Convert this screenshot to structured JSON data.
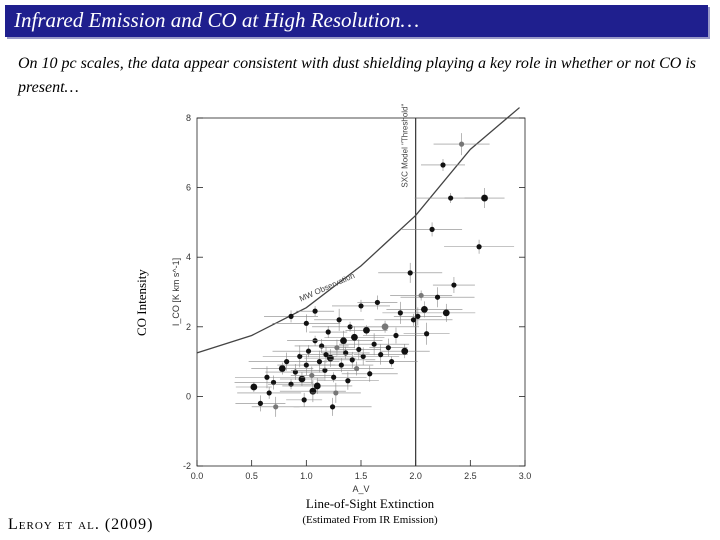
{
  "slide": {
    "title": "Infrared Emission and CO at High Resolution…",
    "subtitle": "On 10 pc scales, the data appear consistent with dust shielding playing a key role in whether or not CO is present…",
    "y_axis_label": "CO Intensity",
    "x_axis_label_line1": "Line-of-Sight Extinction",
    "x_axis_label_line2": "(Estimated From IR Emission)",
    "citation": "Leroy et al. (2009)"
  },
  "colors": {
    "title_bar": "#1f1f8e",
    "title_text": "#ffffff",
    "data": "#111111",
    "gray_points": "#777777"
  },
  "chart_data": {
    "type": "scatter",
    "ylabel": "I_CO [K km s^-1]",
    "xlabel": "A_V",
    "xlim": [
      0.0,
      3.0
    ],
    "ylim": [
      -2,
      8
    ],
    "xticks": [
      "0.0",
      "0.5",
      "1.0",
      "1.5",
      "2.0",
      "2.5",
      "3.0"
    ],
    "yticks": [
      "-2",
      "0",
      "2",
      "4",
      "6",
      "8"
    ],
    "threshold_line": {
      "x": 2.0,
      "label": "SXC Model \"Threshold\""
    },
    "model_curve": {
      "label": "MW Observation",
      "points": [
        [
          0.0,
          1.25
        ],
        [
          0.5,
          1.75
        ],
        [
          1.0,
          2.55
        ],
        [
          1.5,
          3.75
        ],
        [
          2.0,
          5.2
        ],
        [
          2.5,
          7.1
        ],
        [
          2.95,
          8.6
        ]
      ]
    },
    "series": [
      {
        "values": [
          [
            0.52,
            0.27
          ],
          [
            0.58,
            -0.2
          ],
          [
            0.64,
            0.55
          ],
          [
            0.7,
            0.4
          ],
          [
            0.72,
            -0.3
          ],
          [
            0.78,
            0.8
          ],
          [
            0.82,
            1.0
          ],
          [
            0.86,
            0.35
          ],
          [
            0.9,
            0.7
          ],
          [
            0.94,
            1.15
          ],
          [
            0.96,
            0.5
          ],
          [
            1.0,
            0.9
          ],
          [
            1.02,
            1.3
          ],
          [
            1.05,
            0.6
          ],
          [
            1.08,
            1.6
          ],
          [
            1.1,
            0.3
          ],
          [
            1.12,
            1.0
          ],
          [
            1.14,
            1.45
          ],
          [
            1.17,
            0.75
          ],
          [
            1.2,
            1.85
          ],
          [
            1.22,
            1.1
          ],
          [
            1.25,
            0.55
          ],
          [
            1.28,
            1.4
          ],
          [
            1.3,
            2.2
          ],
          [
            1.32,
            0.9
          ],
          [
            1.34,
            1.6
          ],
          [
            1.36,
            1.25
          ],
          [
            1.38,
            0.45
          ],
          [
            1.4,
            2.0
          ],
          [
            1.42,
            1.05
          ],
          [
            1.44,
            1.7
          ],
          [
            1.46,
            0.8
          ],
          [
            1.48,
            1.35
          ],
          [
            1.5,
            2.6
          ],
          [
            1.52,
            1.15
          ],
          [
            1.55,
            1.9
          ],
          [
            1.58,
            0.65
          ],
          [
            1.62,
            1.5
          ],
          [
            1.65,
            2.7
          ],
          [
            1.68,
            1.2
          ],
          [
            1.72,
            2.0
          ],
          [
            1.75,
            1.4
          ],
          [
            1.78,
            1.0
          ],
          [
            1.82,
            1.75
          ],
          [
            1.86,
            2.4
          ],
          [
            1.9,
            1.3
          ],
          [
            1.95,
            3.55
          ],
          [
            1.98,
            2.2
          ],
          [
            2.02,
            2.3
          ],
          [
            2.05,
            2.9
          ],
          [
            2.08,
            2.5
          ],
          [
            2.1,
            1.8
          ],
          [
            2.15,
            4.8
          ],
          [
            2.2,
            2.85
          ],
          [
            2.25,
            6.65
          ],
          [
            2.28,
            2.4
          ],
          [
            2.32,
            5.7
          ],
          [
            2.35,
            3.2
          ],
          [
            2.42,
            7.25
          ],
          [
            2.58,
            4.3
          ],
          [
            2.63,
            5.7
          ],
          [
            0.86,
            2.3
          ],
          [
            1.0,
            2.1
          ],
          [
            1.08,
            2.45
          ],
          [
            1.18,
            1.2
          ],
          [
            1.06,
            0.15
          ],
          [
            0.98,
            -0.1
          ],
          [
            1.27,
            0.1
          ],
          [
            0.66,
            0.1
          ],
          [
            1.24,
            -0.3
          ]
        ]
      }
    ]
  }
}
